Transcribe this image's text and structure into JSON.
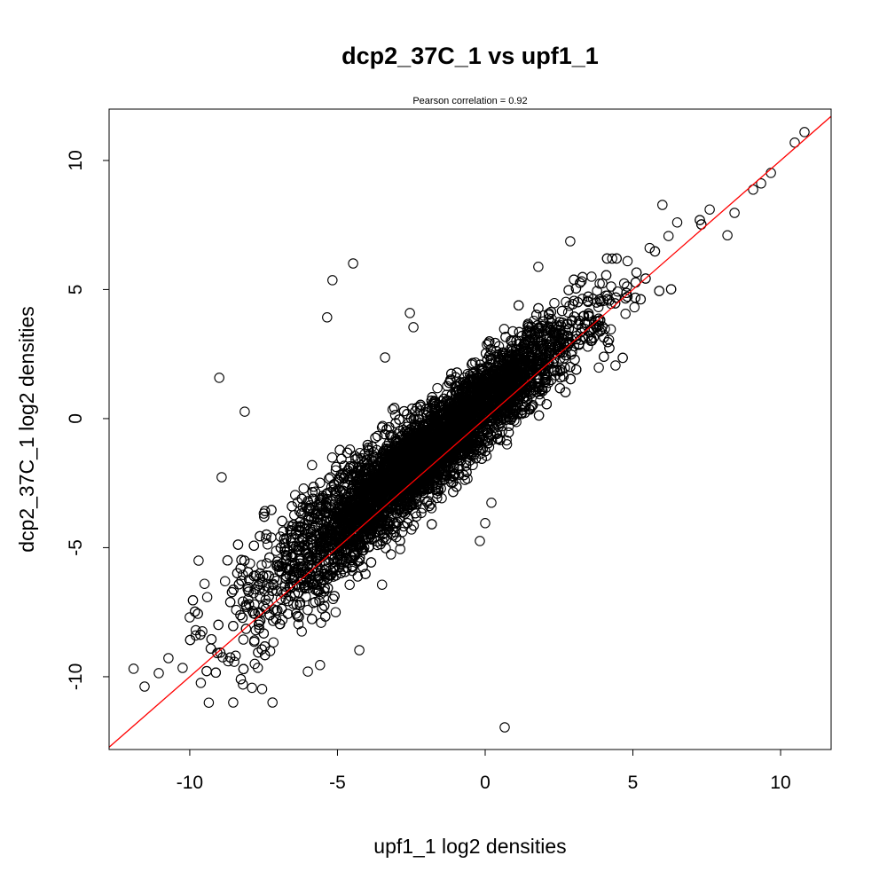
{
  "chart_data": {
    "type": "scatter",
    "title": "dcp2_37C_1 vs upf1_1",
    "subtitle": "Pearson correlation =  0.92",
    "xlabel": "upf1_1 log2 densities",
    "ylabel": "dcp2_37C_1 log2 densities",
    "xlim": [
      -12.73,
      11.71
    ],
    "ylim": [
      -12.82,
      11.99
    ],
    "xticks": [
      -10,
      -5,
      0,
      5,
      10
    ],
    "yticks": [
      -10,
      -5,
      0,
      5,
      10
    ],
    "xtick_labels": [
      "-10",
      "-5",
      "0",
      "5",
      "10"
    ],
    "ytick_labels": [
      "-10",
      "-5",
      "0",
      "5",
      "10"
    ],
    "grid": false,
    "marker": "open-circle",
    "marker_color": "#000000",
    "fit_line": {
      "slope": 1,
      "intercept": 0,
      "color": "#ff0000"
    },
    "cloud_model": {
      "n": 7000,
      "x_mean": -2.0,
      "x_sd": 2.6,
      "slope": 0.95,
      "intercept": 0.5,
      "noise_sd": 0.85,
      "x_range": [
        -10,
        9
      ]
    },
    "points": [
      [
        -4.47,
        6.01
      ],
      [
        -5.17,
        5.36
      ],
      [
        -5.35,
        3.92
      ],
      [
        -9.0,
        1.58
      ],
      [
        -8.14,
        0.27
      ],
      [
        -8.92,
        -2.27
      ],
      [
        0.66,
        -11.96
      ],
      [
        -8.53,
        -11.0
      ],
      [
        -7.2,
        -11.0
      ],
      [
        -11.9,
        -9.69
      ],
      [
        -11.53,
        -10.38
      ],
      [
        -11.05,
        -9.86
      ],
      [
        -10.72,
        -9.28
      ],
      [
        -10.24,
        -9.66
      ],
      [
        10.81,
        11.1
      ],
      [
        10.48,
        10.69
      ],
      [
        9.67,
        9.52
      ],
      [
        9.34,
        9.11
      ],
      [
        9.07,
        8.87
      ],
      [
        6.0,
        8.28
      ],
      [
        2.88,
        6.87
      ],
      [
        1.8,
        5.88
      ],
      [
        -2.55,
        4.09
      ],
      [
        -2.43,
        3.54
      ],
      [
        -3.39,
        2.37
      ],
      [
        -0.18,
        -4.74
      ],
      [
        0.0,
        -4.05
      ],
      [
        0.21,
        -3.26
      ],
      [
        -4.26,
        -8.97
      ],
      [
        -5.59,
        -9.55
      ],
      [
        4.41,
        2.06
      ],
      [
        8.44,
        7.97
      ],
      [
        -9.7,
        -5.5
      ],
      [
        -10.0,
        -7.7
      ],
      [
        -9.8,
        -8.4
      ],
      [
        -9.5,
        -6.4
      ],
      [
        -8.7,
        -9.4
      ],
      [
        -8.2,
        -10.3
      ],
      [
        -7.8,
        -9.5
      ],
      [
        -6.0,
        -9.8
      ],
      [
        8.2,
        7.1
      ],
      [
        7.6,
        8.1
      ],
      [
        6.5,
        7.6
      ],
      [
        4.3,
        6.2
      ],
      [
        3.6,
        5.5
      ]
    ]
  }
}
